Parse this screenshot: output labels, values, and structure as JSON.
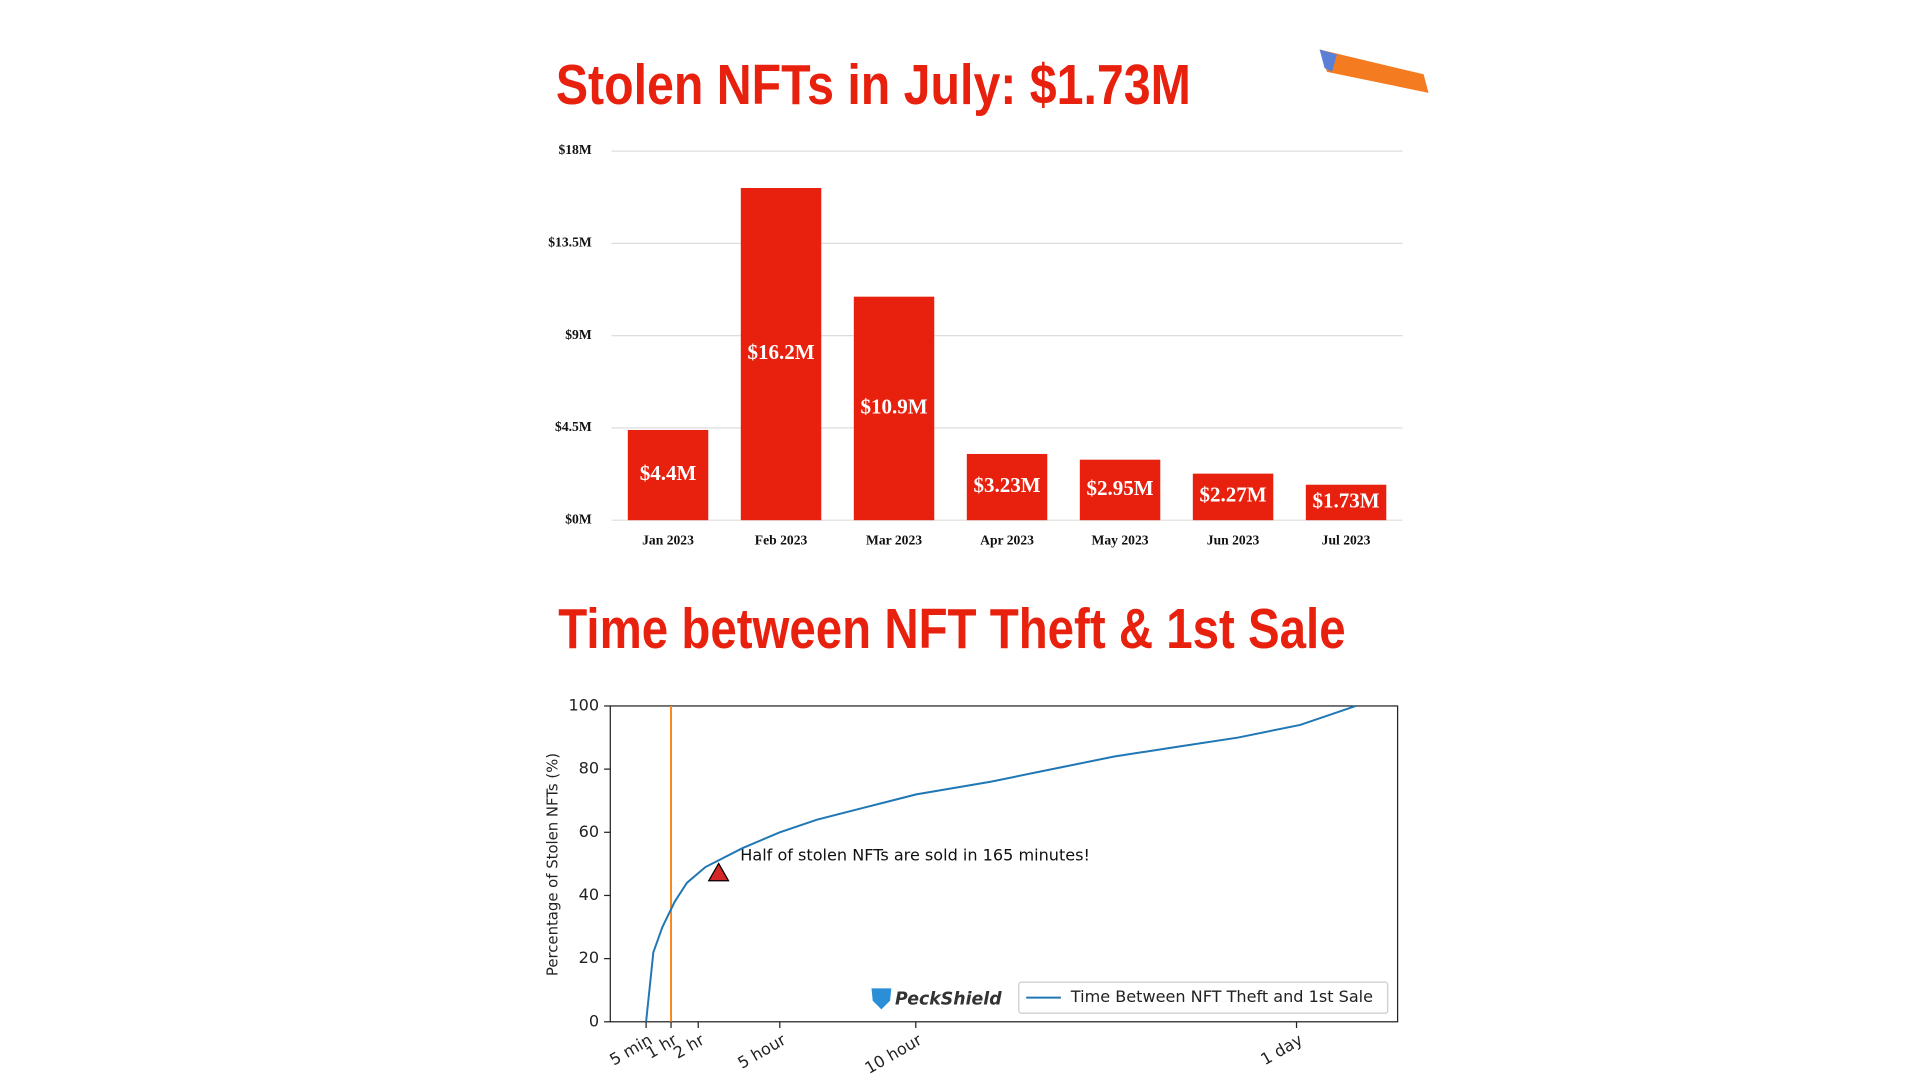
{
  "chart_data": [
    {
      "type": "bar",
      "title": "Stolen NFTs in July: $1.73M",
      "categories": [
        "Jan 2023",
        "Feb 2023",
        "Mar 2023",
        "Apr 2023",
        "May 2023",
        "Jun 2023",
        "Jul 2023"
      ],
      "values": [
        4400000,
        16200000,
        10900000,
        3230000,
        2950000,
        2270000,
        1730000
      ],
      "value_labels": [
        "$4.4M",
        "$16.2M",
        "$10.9M",
        "$3.23M",
        "$2.95M",
        "$2.27M",
        "$1.73M"
      ],
      "color": "#e8210f",
      "ylim": [
        0,
        18000000
      ],
      "yticks": [
        {
          "value": 0,
          "label": "$0M"
        },
        {
          "value": 4500000,
          "label": "$4.5M"
        },
        {
          "value": 9000000,
          "label": "$9M"
        },
        {
          "value": 13500000,
          "label": "$13.5M"
        },
        {
          "value": 18000000,
          "label": "$18M"
        }
      ],
      "grid": true
    },
    {
      "type": "line",
      "title": "Time between NFT Theft & 1st Sale",
      "y_label": "Percentage of Stolen NFTs (%)",
      "x": [
        5,
        21,
        41,
        68,
        95,
        136,
        218,
        300,
        382,
        491,
        601,
        765,
        901,
        1038,
        1174,
        1311,
        1448,
        1571
      ],
      "series": [
        {
          "name": "Time Between NFT Theft and 1st Sale",
          "color": "#1f77b4",
          "values": [
            0,
            22,
            30,
            38,
            44,
            49,
            55,
            60,
            64,
            68,
            72,
            76,
            80,
            84,
            87,
            90,
            94,
            100
          ]
        }
      ],
      "xlim": [
        -74,
        1663
      ],
      "xticks": [
        {
          "value": 5,
          "label": "5 min"
        },
        {
          "value": 60,
          "label": "1 hr"
        },
        {
          "value": 120,
          "label": "2 hr"
        },
        {
          "value": 300,
          "label": "5 hour"
        },
        {
          "value": 600,
          "label": "10 hour"
        },
        {
          "value": 1440,
          "label": "1 day"
        }
      ],
      "ylim": [
        0,
        100
      ],
      "yticks": [
        0,
        20,
        40,
        60,
        80,
        100
      ],
      "vline": {
        "x": 60,
        "color": "#ff7f0e"
      },
      "marker": {
        "x": 165,
        "y": 47,
        "color": "#d62728"
      },
      "annotation": "Half of stolen NFTs are sold in 165 minutes!",
      "watermark": "PeckShield",
      "legend": "lower right",
      "grid": false
    }
  ]
}
